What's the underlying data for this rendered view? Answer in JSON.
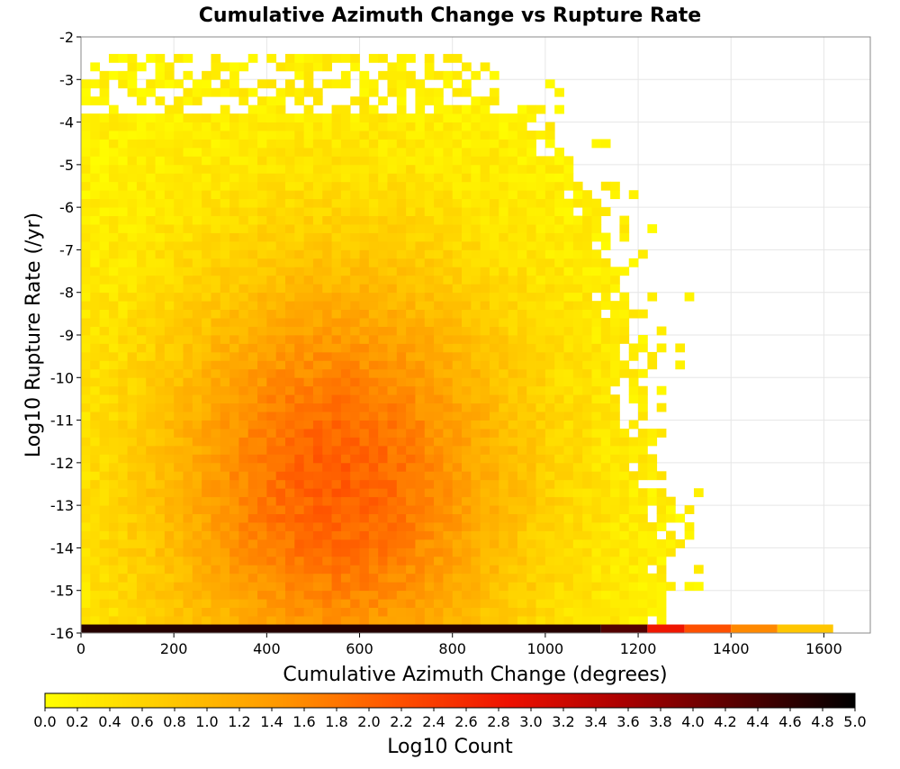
{
  "chart_data": {
    "type": "heatmap",
    "title": "Cumulative Azimuth Change vs Rupture Rate",
    "xlabel": "Cumulative Azimuth Change (degrees)",
    "ylabel": "Log10 Rupture Rate (/yr)",
    "xlim": [
      0,
      1700
    ],
    "ylim": [
      -16,
      -2
    ],
    "xticks": [
      "0",
      "200",
      "400",
      "600",
      "800",
      "1000",
      "1200",
      "1400",
      "1600"
    ],
    "yticks": [
      "-2",
      "-3",
      "-4",
      "-5",
      "-6",
      "-7",
      "-8",
      "-9",
      "-10",
      "-11",
      "-12",
      "-13",
      "-14",
      "-15",
      "-16"
    ],
    "x_bin_width": 20,
    "y_bin_height": 0.2,
    "grid": true,
    "colorbar": {
      "label": "Log10 Count",
      "range": [
        0,
        5
      ],
      "ticks": [
        "0.0",
        "0.2",
        "0.4",
        "0.6",
        "0.8",
        "1.0",
        "1.2",
        "1.4",
        "1.6",
        "1.8",
        "2.0",
        "2.2",
        "2.4",
        "2.6",
        "2.8",
        "3.0",
        "3.2",
        "3.4",
        "3.6",
        "3.8",
        "4.0",
        "4.2",
        "4.4",
        "4.6",
        "4.8",
        "5.0"
      ],
      "colors": [
        "#ffff00",
        "#ffcc00",
        "#ff9900",
        "#ff5500",
        "#ee1100",
        "#aa0000",
        "#550000",
        "#000000"
      ]
    },
    "bottom_row": {
      "y": -16,
      "segments": [
        {
          "x_range": [
            0,
            1120
          ],
          "log10_count": 4.7
        },
        {
          "x_range": [
            1120,
            1220
          ],
          "log10_count": 4.3
        },
        {
          "x_range": [
            1220,
            1300
          ],
          "log10_count": 2.8
        },
        {
          "x_range": [
            1300,
            1400
          ],
          "log10_count": 2.2
        },
        {
          "x_range": [
            1400,
            1500
          ],
          "log10_count": 1.6
        },
        {
          "x_range": [
            1500,
            1620
          ],
          "log10_count": 0.8
        }
      ]
    },
    "density_summary": {
      "peak_x": 550,
      "peak_y": -12.5,
      "peak_log10_count": 1.9,
      "outer_edge_x": [
        1100,
        1180,
        1220,
        1300
      ],
      "outer_edge_y": [
        -5.5,
        -8.5,
        -11,
        -14
      ]
    }
  }
}
